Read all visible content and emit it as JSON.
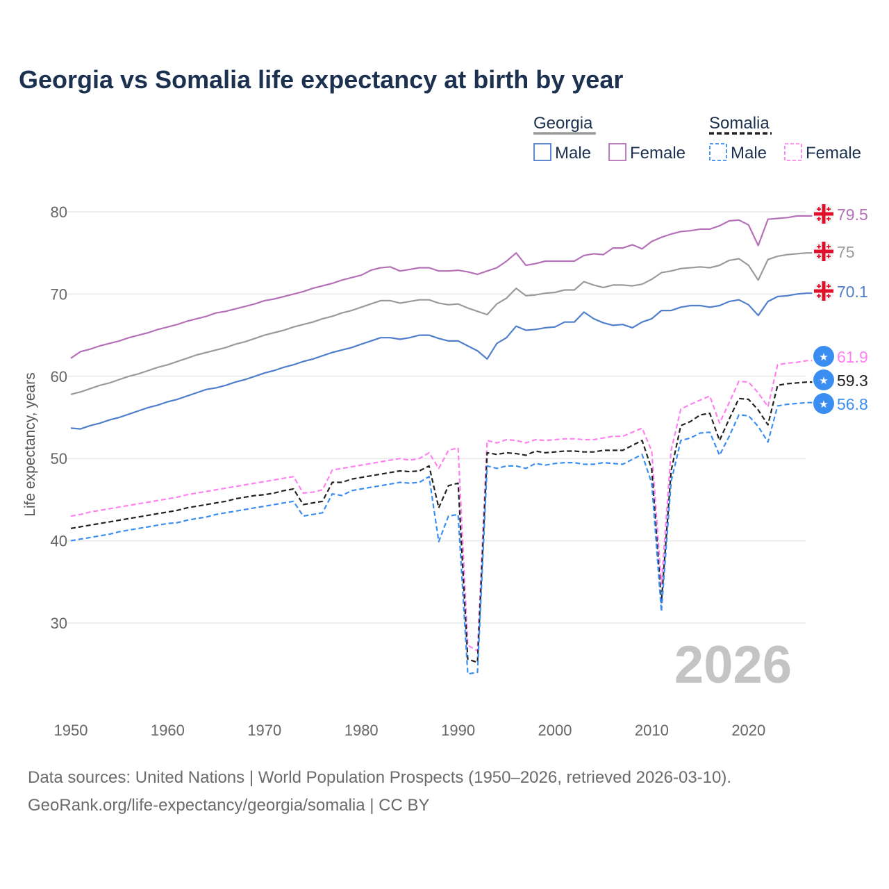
{
  "title": "Georgia vs Somalia life expectancy at birth by year",
  "footer": {
    "line1": "Data sources: United Nations | World Population Prospects (1950–2026, retrieved 2026-03-10).",
    "line2": "GeoRank.org/life-expectancy/georgia/somalia | CC BY"
  },
  "chart_data": {
    "type": "line",
    "title": "Georgia vs Somalia life expectancy at birth by year",
    "xlabel": "",
    "ylabel": "Life expectancy, years",
    "xlim": [
      1950,
      2026
    ],
    "ylim": [
      20,
      82
    ],
    "x_ticks": [
      1950,
      1960,
      1970,
      1980,
      1990,
      2000,
      2010,
      2020
    ],
    "y_ticks": [
      30,
      40,
      50,
      60,
      70,
      80
    ],
    "grid": true,
    "year_watermark": "2026",
    "legend": {
      "placement": "top-right",
      "groups": [
        {
          "name": "Georgia",
          "items": [
            "Male",
            "Female"
          ]
        },
        {
          "name": "Somalia",
          "items": [
            "Male",
            "Female"
          ]
        }
      ]
    },
    "x_start": 1950,
    "series": [
      {
        "name": "Georgia Female",
        "country": "Georgia",
        "color": "#b571b8",
        "dash": false,
        "flag": "georgia-flag",
        "end_label": "79.5",
        "values": [
          62.2,
          63.0,
          63.3,
          63.7,
          64.0,
          64.3,
          64.7,
          65.0,
          65.3,
          65.7,
          66.0,
          66.3,
          66.7,
          67.0,
          67.3,
          67.7,
          67.9,
          68.2,
          68.5,
          68.8,
          69.2,
          69.4,
          69.7,
          70.0,
          70.3,
          70.7,
          71.0,
          71.3,
          71.7,
          72.0,
          72.3,
          72.9,
          73.2,
          73.3,
          72.8,
          73.0,
          73.2,
          73.2,
          72.8,
          72.8,
          72.9,
          72.7,
          72.4,
          72.8,
          73.2,
          74.0,
          75.0,
          73.5,
          73.7,
          74.0,
          74.0,
          74.0,
          74.0,
          74.7,
          74.9,
          74.8,
          75.6,
          75.6,
          76.0,
          75.5,
          76.4,
          76.9,
          77.3,
          77.6,
          77.7,
          77.9,
          77.9,
          78.3,
          78.9,
          79.0,
          78.4,
          75.9,
          79.1,
          79.2,
          79.3,
          79.5,
          79.5
        ]
      },
      {
        "name": "Georgia Total",
        "country": "Georgia",
        "color": "#9a9a9a",
        "dash": false,
        "flag": "georgia-flag",
        "end_label": "75",
        "values": [
          57.8,
          58.1,
          58.5,
          58.9,
          59.2,
          59.6,
          60.0,
          60.3,
          60.7,
          61.1,
          61.4,
          61.8,
          62.2,
          62.6,
          62.9,
          63.2,
          63.5,
          63.9,
          64.2,
          64.6,
          65.0,
          65.3,
          65.6,
          66.0,
          66.3,
          66.6,
          67.0,
          67.3,
          67.7,
          68.0,
          68.4,
          68.8,
          69.2,
          69.2,
          68.9,
          69.1,
          69.3,
          69.3,
          68.9,
          68.7,
          68.8,
          68.3,
          67.9,
          67.5,
          68.8,
          69.5,
          70.7,
          69.8,
          69.9,
          70.1,
          70.2,
          70.5,
          70.5,
          71.5,
          71.1,
          70.8,
          71.1,
          71.1,
          71.0,
          71.2,
          71.8,
          72.6,
          72.8,
          73.1,
          73.2,
          73.3,
          73.2,
          73.5,
          74.1,
          74.3,
          73.5,
          71.7,
          74.2,
          74.6,
          74.8,
          74.9,
          75.0
        ]
      },
      {
        "name": "Georgia Male",
        "country": "Georgia",
        "color": "#4f7ecb",
        "dash": false,
        "flag": "georgia-flag",
        "end_label": "70.1",
        "values": [
          53.7,
          53.6,
          54.0,
          54.3,
          54.7,
          55.0,
          55.4,
          55.8,
          56.2,
          56.5,
          56.9,
          57.2,
          57.6,
          58.0,
          58.4,
          58.6,
          58.9,
          59.3,
          59.6,
          60.0,
          60.4,
          60.7,
          61.1,
          61.4,
          61.8,
          62.1,
          62.5,
          62.9,
          63.2,
          63.5,
          63.9,
          64.3,
          64.7,
          64.7,
          64.5,
          64.7,
          65.0,
          65.0,
          64.6,
          64.3,
          64.3,
          63.7,
          63.1,
          62.1,
          64.0,
          64.7,
          66.1,
          65.6,
          65.7,
          65.9,
          66.0,
          66.6,
          66.6,
          67.8,
          67.0,
          66.5,
          66.2,
          66.3,
          65.9,
          66.6,
          67.0,
          68.0,
          68.0,
          68.4,
          68.6,
          68.6,
          68.4,
          68.6,
          69.1,
          69.3,
          68.7,
          67.4,
          69.1,
          69.7,
          69.8,
          70.0,
          70.1
        ]
      },
      {
        "name": "Somalia Female",
        "country": "Somalia",
        "color": "#ff80f0",
        "dash": true,
        "flag": "somalia-flag",
        "end_label": "61.9",
        "values": [
          43.0,
          43.2,
          43.5,
          43.7,
          43.9,
          44.1,
          44.3,
          44.5,
          44.7,
          44.9,
          45.1,
          45.3,
          45.6,
          45.8,
          46.0,
          46.2,
          46.4,
          46.6,
          46.8,
          47.0,
          47.2,
          47.4,
          47.6,
          47.8,
          45.8,
          45.9,
          46.2,
          48.6,
          48.8,
          49.0,
          49.2,
          49.4,
          49.6,
          49.8,
          50.0,
          49.8,
          50.0,
          50.7,
          48.8,
          51.0,
          51.3,
          27.3,
          26.6,
          52.2,
          51.9,
          52.3,
          52.2,
          51.9,
          52.3,
          52.2,
          52.3,
          52.4,
          52.4,
          52.3,
          52.3,
          52.5,
          52.7,
          52.7,
          53.2,
          53.7,
          50.9,
          34.7,
          51.0,
          56.0,
          56.6,
          57.1,
          57.6,
          54.3,
          56.8,
          59.4,
          59.3,
          58.0,
          56.3,
          61.4,
          61.6,
          61.7,
          61.9
        ]
      },
      {
        "name": "Somalia Total",
        "country": "Somalia",
        "color": "#222222",
        "dash": true,
        "flag": "somalia-flag",
        "end_label": "59.3",
        "values": [
          41.5,
          41.7,
          41.9,
          42.1,
          42.3,
          42.5,
          42.7,
          42.9,
          43.1,
          43.3,
          43.5,
          43.7,
          44.0,
          44.2,
          44.4,
          44.6,
          44.8,
          45.1,
          45.3,
          45.5,
          45.6,
          45.8,
          46.1,
          46.3,
          44.4,
          44.6,
          44.8,
          47.1,
          47.1,
          47.5,
          47.7,
          47.9,
          48.1,
          48.3,
          48.5,
          48.4,
          48.5,
          49.1,
          44.0,
          46.7,
          47.0,
          25.6,
          25.2,
          50.7,
          50.5,
          50.7,
          50.6,
          50.4,
          50.9,
          50.7,
          50.8,
          50.9,
          50.9,
          50.8,
          50.8,
          51.0,
          51.0,
          51.0,
          51.6,
          52.2,
          48.7,
          32.5,
          48.5,
          54.0,
          54.5,
          55.3,
          55.5,
          52.2,
          54.8,
          57.3,
          57.2,
          55.9,
          54.1,
          58.9,
          59.1,
          59.2,
          59.3
        ]
      },
      {
        "name": "Somalia Male",
        "country": "Somalia",
        "color": "#3a8ef2",
        "dash": true,
        "flag": "somalia-flag",
        "end_label": "56.8",
        "values": [
          40.0,
          40.2,
          40.4,
          40.6,
          40.8,
          41.1,
          41.3,
          41.5,
          41.7,
          41.9,
          42.1,
          42.2,
          42.5,
          42.7,
          42.9,
          43.2,
          43.4,
          43.6,
          43.8,
          44.0,
          44.2,
          44.4,
          44.6,
          44.8,
          43.0,
          43.2,
          43.4,
          45.7,
          45.5,
          46.1,
          46.3,
          46.5,
          46.7,
          46.9,
          47.1,
          47.0,
          47.1,
          47.8,
          39.9,
          43.0,
          43.2,
          23.8,
          24.0,
          49.1,
          48.8,
          49.1,
          49.1,
          48.8,
          49.4,
          49.2,
          49.4,
          49.5,
          49.5,
          49.3,
          49.3,
          49.5,
          49.4,
          49.3,
          49.9,
          50.5,
          47.0,
          31.4,
          47.2,
          52.2,
          52.5,
          53.1,
          53.2,
          50.4,
          52.7,
          55.3,
          55.2,
          53.9,
          52.0,
          56.4,
          56.6,
          56.7,
          56.8
        ]
      }
    ]
  }
}
